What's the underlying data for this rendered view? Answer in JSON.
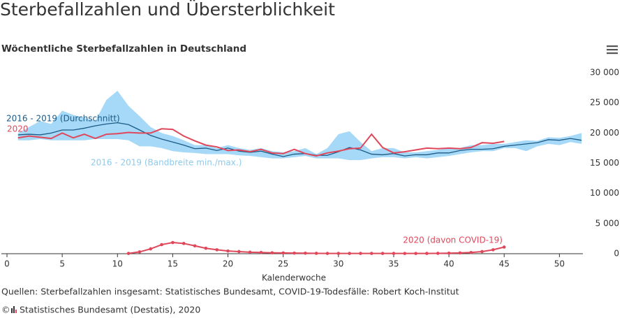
{
  "page_title": "Sterbefallzahlen und Übersterblichkeit",
  "chart_data": {
    "type": "line",
    "title": "Wöchentliche Sterbefallzahlen in Deutschland",
    "x_label": "Kalenderwoche",
    "x": [
      1,
      2,
      3,
      4,
      5,
      6,
      7,
      8,
      9,
      10,
      11,
      12,
      13,
      14,
      15,
      16,
      17,
      18,
      19,
      20,
      21,
      22,
      23,
      24,
      25,
      26,
      27,
      28,
      29,
      30,
      31,
      32,
      33,
      34,
      35,
      36,
      37,
      38,
      39,
      40,
      41,
      42,
      43,
      44,
      45,
      46,
      47,
      48,
      49,
      50,
      51,
      52
    ],
    "xlim": [
      0,
      52
    ],
    "xticks": [
      0,
      5,
      10,
      15,
      20,
      25,
      30,
      35,
      40,
      45,
      50
    ],
    "ylim": [
      0,
      30000
    ],
    "yticks": [
      0,
      {
        "value": 5000,
        "label": "5 000"
      },
      {
        "value": 10000,
        "label": "10 000"
      },
      {
        "value": 15000,
        "label": "15 000"
      },
      {
        "value": 20000,
        "label": "20 000"
      },
      {
        "value": 25000,
        "label": "25 000"
      },
      {
        "value": 30000,
        "label": "30 000"
      }
    ],
    "grid": false,
    "series": [
      {
        "name": "2016 - 2019 (Bandbreite min./max.)",
        "color": "#a6d9f7",
        "lower": [
          18800,
          18800,
          19000,
          18800,
          18800,
          18800,
          18800,
          19000,
          19000,
          19000,
          18800,
          17800,
          17800,
          17500,
          17000,
          16800,
          16700,
          16500,
          16500,
          16500,
          16300,
          16200,
          16000,
          15800,
          15800,
          16000,
          16200,
          15800,
          15800,
          15800,
          15500,
          15500,
          15800,
          16000,
          16000,
          15800,
          16000,
          15800,
          16000,
          16200,
          16500,
          16800,
          17000,
          17000,
          17500,
          17500,
          17000,
          17800,
          18200,
          18000,
          18500,
          18200
        ],
        "upper": [
          20000,
          21000,
          22000,
          21500,
          23700,
          23000,
          22500,
          22000,
          25500,
          27000,
          24500,
          22800,
          21000,
          20000,
          19500,
          18800,
          18000,
          18000,
          17500,
          18000,
          17500,
          17200,
          17500,
          17000,
          16800,
          17000,
          17500,
          16500,
          17500,
          19800,
          20300,
          18500,
          17000,
          17500,
          17500,
          16800,
          16800,
          17000,
          17200,
          17500,
          17500,
          18000,
          18000,
          18200,
          18200,
          18500,
          18800,
          18700,
          19300,
          19200,
          19500,
          20000
        ]
      },
      {
        "name": "2016 - 2019 (Durchschnitt)",
        "color": "#1b5a86",
        "values": [
          19700,
          19800,
          19700,
          20000,
          20500,
          20500,
          20800,
          21200,
          21500,
          21700,
          21400,
          20500,
          19600,
          19000,
          18500,
          18000,
          17400,
          17500,
          17100,
          17500,
          17000,
          16800,
          17000,
          16500,
          16100,
          16500,
          16600,
          16300,
          16300,
          16900,
          17600,
          17200,
          16500,
          16400,
          16600,
          16200,
          16400,
          16400,
          16700,
          16700,
          17100,
          17300,
          17300,
          17400,
          17800,
          18000,
          18200,
          18400,
          18900,
          18800,
          19100,
          18800
        ]
      },
      {
        "name": "2020",
        "color": "#e0475a",
        "values": [
          19200,
          19500,
          19300,
          19100,
          20000,
          19200,
          19800,
          19100,
          19800,
          19900,
          20100,
          20000,
          20000,
          20700,
          20600,
          19500,
          18700,
          18000,
          17700,
          17100,
          17200,
          16900,
          17300,
          16700,
          16600,
          17300,
          16600,
          16200,
          16700,
          17000,
          17400,
          17500,
          19800,
          17600,
          16700,
          16900,
          17200,
          17500,
          17400,
          17500,
          17400,
          17600,
          18400,
          18300,
          18600,
          null,
          null,
          null,
          null,
          null,
          null,
          null
        ]
      },
      {
        "name": "2020 (davon COVID-19)",
        "color": "#e0475a",
        "markers": true,
        "values": [
          null,
          null,
          null,
          null,
          null,
          null,
          null,
          null,
          null,
          null,
          50,
          300,
          800,
          1500,
          1850,
          1700,
          1300,
          900,
          650,
          450,
          350,
          250,
          200,
          150,
          130,
          100,
          80,
          60,
          50,
          50,
          50,
          50,
          50,
          50,
          50,
          40,
          40,
          50,
          60,
          90,
          130,
          200,
          350,
          650,
          1100,
          null,
          null,
          null,
          null,
          null,
          null,
          null
        ]
      }
    ]
  },
  "source": "Quellen: Sterbefallzahlen insgesamt: Statistisches Bundesamt, COVID-19-Todesfälle: Robert Koch-Institut",
  "copyright_symbol": "©",
  "copyright": "Statistisches Bundesamt (Destatis), 2020"
}
